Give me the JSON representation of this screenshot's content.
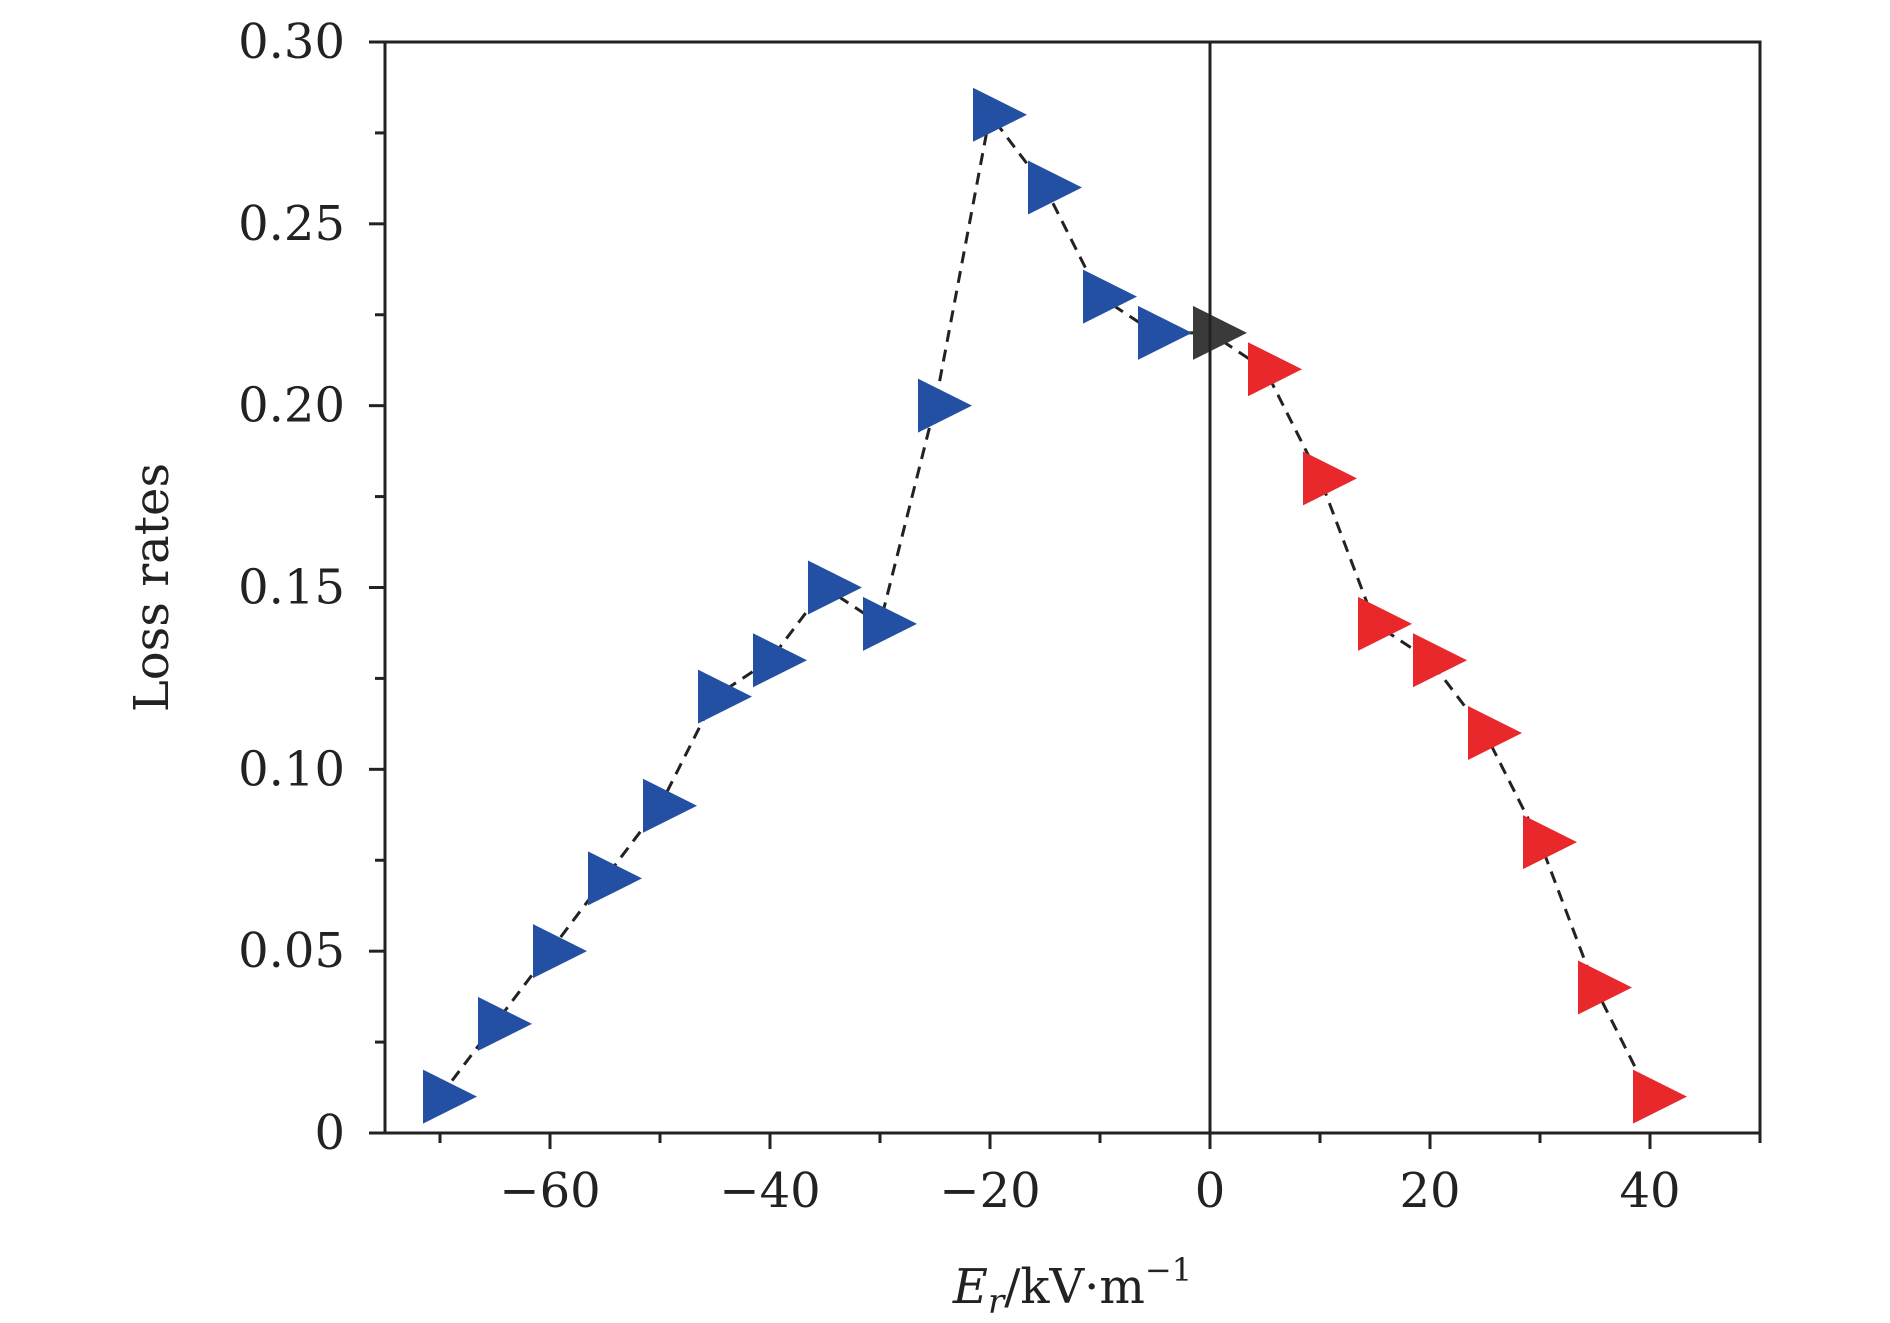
{
  "chart_data": {
    "type": "scatter",
    "title": "",
    "xlabel": {
      "var": "E",
      "sub": "r",
      "unit": "/kV·m",
      "sup": "−1"
    },
    "ylabel": "Loss rates",
    "xlim": [
      -75,
      50
    ],
    "ylim": [
      0,
      0.3
    ],
    "x_ticks": [
      {
        "value": -60,
        "label": "−60"
      },
      {
        "value": -40,
        "label": "−40"
      },
      {
        "value": -20,
        "label": "−20"
      },
      {
        "value": 0,
        "label": "0"
      },
      {
        "value": 20,
        "label": "20"
      },
      {
        "value": 40,
        "label": "40"
      }
    ],
    "y_ticks": [
      {
        "value": 0,
        "label": "0"
      },
      {
        "value": 0.05,
        "label": "0.05"
      },
      {
        "value": 0.1,
        "label": "0.10"
      },
      {
        "value": 0.15,
        "label": "0.15"
      },
      {
        "value": 0.2,
        "label": "0.20"
      },
      {
        "value": 0.25,
        "label": "0.25"
      },
      {
        "value": 0.3,
        "label": "0.30"
      }
    ],
    "reference_line_x": 0,
    "grid": false,
    "marker": "right-triangle",
    "line_style": "dashed",
    "series": [
      {
        "color": "#2350a3",
        "points": [
          [
            -70,
            0.01
          ],
          [
            -65,
            0.03
          ],
          [
            -60,
            0.05
          ],
          [
            -55,
            0.07
          ],
          [
            -50,
            0.09
          ],
          [
            -45,
            0.12
          ],
          [
            -40,
            0.13
          ],
          [
            -35,
            0.15
          ],
          [
            -30,
            0.14
          ],
          [
            -25,
            0.2
          ],
          [
            -20,
            0.28
          ],
          [
            -15,
            0.26
          ],
          [
            -10,
            0.23
          ],
          [
            -5,
            0.22
          ]
        ]
      },
      {
        "color": "#3a3a3a",
        "points": [
          [
            0,
            0.22
          ]
        ]
      },
      {
        "color": "#e8282b",
        "points": [
          [
            5,
            0.21
          ],
          [
            10,
            0.18
          ],
          [
            15,
            0.14
          ],
          [
            20,
            0.13
          ],
          [
            25,
            0.11
          ],
          [
            30,
            0.08
          ],
          [
            35,
            0.04
          ],
          [
            40,
            0.01
          ]
        ]
      }
    ]
  }
}
